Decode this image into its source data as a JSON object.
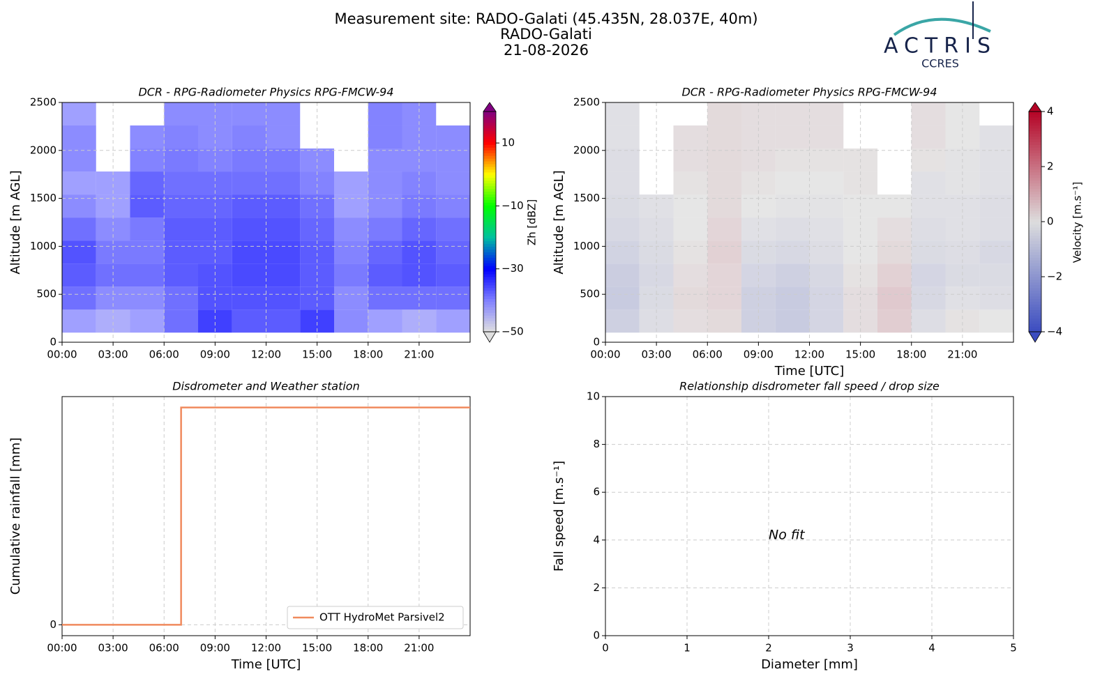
{
  "header": {
    "title_lines": [
      "Measurement site: RADO-Galati (45.435N, 28.037E, 40m)",
      "RADO-Galati",
      "21-08-2026"
    ],
    "logo": "ACTRIS",
    "logo_sub": "CCRES"
  },
  "chart_data": [
    {
      "type": "heatmap",
      "title": "DCR - RPG-Radiometer Physics RPG-FMCW-94",
      "ylabel": "Altitude [m AGL]",
      "x_bins": [
        0,
        2,
        4,
        6,
        8,
        10,
        12,
        14,
        16,
        18,
        20,
        22,
        24
      ],
      "y_bins": [
        100,
        340,
        580,
        820,
        1060,
        1300,
        1540,
        1780,
        2020,
        2260,
        2500
      ],
      "z": [
        [
          -40,
          -42,
          -40,
          -35,
          -30,
          -33,
          -33,
          -30,
          -38,
          -40,
          -42,
          -40
        ],
        [
          -35,
          -38,
          -38,
          -35,
          -32,
          -32,
          -32,
          -33,
          -38,
          -35,
          -35,
          -35
        ],
        [
          -33,
          -35,
          -35,
          -33,
          -32,
          -31,
          -31,
          -33,
          -36,
          -33,
          -32,
          -33
        ],
        [
          -32,
          -36,
          -36,
          -33,
          -33,
          -31,
          -31,
          -33,
          -37,
          -34,
          -32,
          -34
        ],
        [
          -35,
          -38,
          -36,
          -33,
          -33,
          -32,
          -32,
          -34,
          -38,
          -36,
          -34,
          -35
        ],
        [
          -38,
          -40,
          -33,
          -34,
          -34,
          -33,
          -33,
          -35,
          -40,
          -38,
          -36,
          -37
        ],
        [
          -40,
          -40,
          -34,
          -35,
          -35,
          -35,
          -35,
          -37,
          -40,
          -38,
          -37,
          -38
        ],
        [
          -38,
          null,
          -37,
          -36,
          -37,
          -36,
          -36,
          -38,
          null,
          -38,
          -38,
          -38
        ],
        [
          -38,
          null,
          -38,
          -37,
          -38,
          -37,
          -38,
          null,
          null,
          -37,
          -38,
          -38
        ],
        [
          -40,
          null,
          null,
          -38,
          -38,
          -38,
          -38,
          null,
          null,
          -37,
          -38,
          null
        ]
      ],
      "colormap": [
        "#e0e0e0",
        "#8080ff",
        "#0000ff",
        "#00c0a0",
        "#00ff00",
        "#ffff00",
        "#ff0000",
        "#800080"
      ],
      "clim": [
        -50,
        20
      ],
      "cbticks": [
        {
          "value": -50,
          "label": "−50"
        },
        {
          "value": -30,
          "label": "−30"
        },
        {
          "value": -10,
          "label": "−10"
        },
        10
      ],
      "colorbar_label": "Zh [dBZ]",
      "xlim": [
        0,
        24
      ],
      "xticks": [
        {
          "value": 0,
          "label": "00:00"
        },
        {
          "value": 3,
          "label": "03:00"
        },
        {
          "value": 6,
          "label": "06:00"
        },
        {
          "value": 9,
          "label": "09:00"
        },
        {
          "value": 12,
          "label": "12:00"
        },
        {
          "value": 15,
          "label": "15:00"
        },
        {
          "value": 18,
          "label": "18:00"
        },
        {
          "value": 21,
          "label": "21:00"
        }
      ],
      "ylim": [
        0,
        2500
      ],
      "yticks": [
        0,
        500,
        1000,
        1500,
        2000,
        2500
      ],
      "grid": true
    },
    {
      "type": "heatmap",
      "title": "DCR - RPG-Radiometer Physics RPG-FMCW-94",
      "xlabel": "Time [UTC]",
      "ylabel": "Altitude [m AGL]",
      "x_bins": [
        0,
        2,
        4,
        6,
        8,
        10,
        12,
        14,
        16,
        18,
        20,
        22,
        24
      ],
      "y_bins": [
        100,
        340,
        580,
        820,
        1060,
        1300,
        1540,
        1780,
        2020,
        2260,
        2500
      ],
      "z": [
        [
          -0.8,
          -0.3,
          0.2,
          0.3,
          -0.8,
          -1.0,
          -0.6,
          0.2,
          0.6,
          -0.3,
          0.1,
          0.0
        ],
        [
          -1.0,
          -0.4,
          0.3,
          0.4,
          -0.8,
          -1.0,
          -0.6,
          0.2,
          0.7,
          -0.5,
          -0.2,
          -0.3
        ],
        [
          -0.9,
          -0.5,
          0.2,
          0.4,
          -0.6,
          -0.8,
          -0.5,
          0.1,
          0.5,
          -0.6,
          -0.4,
          -0.4
        ],
        [
          -0.7,
          -0.4,
          0.1,
          0.5,
          -0.4,
          -0.5,
          -0.3,
          0.0,
          0.3,
          -0.4,
          -0.3,
          -0.5
        ],
        [
          -0.5,
          -0.3,
          0.0,
          0.4,
          -0.2,
          -0.3,
          -0.2,
          0.0,
          0.2,
          -0.3,
          -0.2,
          -0.3
        ],
        [
          -0.4,
          -0.2,
          0.0,
          0.3,
          0.0,
          -0.1,
          -0.1,
          0.0,
          0.0,
          -0.2,
          -0.2,
          -0.3
        ],
        [
          -0.3,
          null,
          0.1,
          0.3,
          0.1,
          0.0,
          0.0,
          0.1,
          null,
          -0.2,
          -0.1,
          -0.2
        ],
        [
          -0.3,
          null,
          0.2,
          0.3,
          0.2,
          0.1,
          0.1,
          0.1,
          null,
          0.1,
          -0.1,
          -0.2
        ],
        [
          -0.2,
          null,
          0.2,
          0.3,
          0.2,
          0.2,
          0.2,
          null,
          null,
          0.2,
          0.0,
          -0.2
        ],
        [
          -0.2,
          null,
          null,
          0.3,
          0.2,
          0.2,
          0.2,
          null,
          null,
          0.2,
          0.0,
          null
        ]
      ],
      "colormap": [
        "#3b4cc0",
        "#dddddd",
        "#b40426"
      ],
      "clim": [
        -4,
        4
      ],
      "cbticks": [
        {
          "value": -4,
          "label": "−4"
        },
        {
          "value": -2,
          "label": "−2"
        },
        0,
        2,
        4
      ],
      "colorbar_label": "Velocity [m.s⁻¹]",
      "xlim": [
        0,
        24
      ],
      "xticks": [
        {
          "value": 0,
          "label": "00:00"
        },
        {
          "value": 3,
          "label": "03:00"
        },
        {
          "value": 6,
          "label": "06:00"
        },
        {
          "value": 9,
          "label": "09:00"
        },
        {
          "value": 12,
          "label": "12:00"
        },
        {
          "value": 15,
          "label": "15:00"
        },
        {
          "value": 18,
          "label": "18:00"
        },
        {
          "value": 21,
          "label": "21:00"
        }
      ],
      "ylim": [
        0,
        2500
      ],
      "yticks": [
        0,
        500,
        1000,
        1500,
        2000,
        2500
      ],
      "grid": true
    },
    {
      "type": "line",
      "title": "Disdrometer and Weather station",
      "xlabel": "Time [UTC]",
      "ylabel": "Cumulative rainfall [mm]",
      "x": [
        0,
        7,
        7,
        24
      ],
      "series": [
        {
          "name": "OTT HydroMet Parsivel2",
          "color": "#f08a5d",
          "values": [
            0,
            0,
            1,
            1
          ]
        }
      ],
      "legend": "lower right",
      "xlim": [
        0,
        24
      ],
      "xticks": [
        {
          "value": 0,
          "label": "00:00"
        },
        {
          "value": 3,
          "label": "03:00"
        },
        {
          "value": 6,
          "label": "06:00"
        },
        {
          "value": 9,
          "label": "09:00"
        },
        {
          "value": 12,
          "label": "12:00"
        },
        {
          "value": 15,
          "label": "15:00"
        },
        {
          "value": 18,
          "label": "18:00"
        },
        {
          "value": 21,
          "label": "21:00"
        }
      ],
      "ylim": [
        -0.05,
        1.05
      ],
      "yticks": [
        0
      ],
      "grid": true
    },
    {
      "type": "scatter",
      "title": "Relationship disdrometer fall speed / drop size",
      "xlabel": "Diameter [mm]",
      "ylabel": "Fall speed [m.s⁻¹]",
      "annotation": "No fit",
      "xlim": [
        0,
        5
      ],
      "xticks": [
        0,
        1,
        2,
        3,
        4,
        5
      ],
      "ylim": [
        0,
        10
      ],
      "yticks": [
        0,
        2,
        4,
        6,
        8,
        10
      ],
      "grid": true
    }
  ]
}
